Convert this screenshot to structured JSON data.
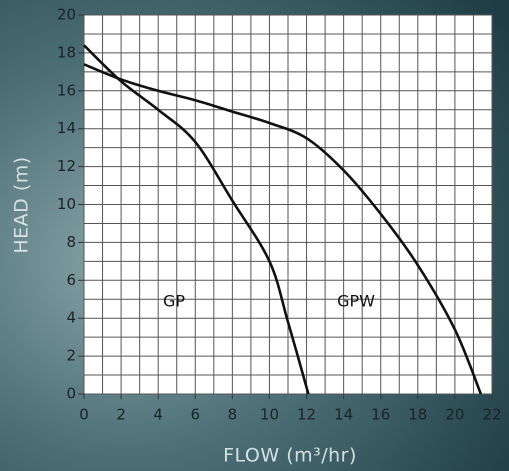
{
  "chart_data": {
    "type": "line",
    "xlabel": "FLOW (m³/hr)",
    "ylabel": "HEAD (m)",
    "xlim": [
      0,
      22
    ],
    "ylim": [
      0,
      20
    ],
    "xticks": [
      0,
      2,
      4,
      6,
      8,
      10,
      12,
      14,
      16,
      18,
      20,
      22
    ],
    "yticks": [
      0,
      2,
      4,
      6,
      8,
      10,
      12,
      14,
      16,
      18,
      20
    ],
    "grid": true,
    "minor_grid": true,
    "series": [
      {
        "name": "GP",
        "color": "#111111",
        "x": [
          0,
          2,
          4,
          6,
          8,
          10,
          11,
          12.1
        ],
        "values": [
          18.4,
          16.5,
          15,
          13.3,
          10.2,
          7,
          3.8,
          0
        ]
      },
      {
        "name": "GPW",
        "color": "#111111",
        "x": [
          0,
          2,
          4,
          6,
          8,
          10,
          12,
          14,
          16,
          18,
          20,
          21.4
        ],
        "values": [
          17.4,
          16.6,
          16,
          15.5,
          14.9,
          14.3,
          13.5,
          11.8,
          9.5,
          6.8,
          3.4,
          0
        ]
      }
    ]
  }
}
